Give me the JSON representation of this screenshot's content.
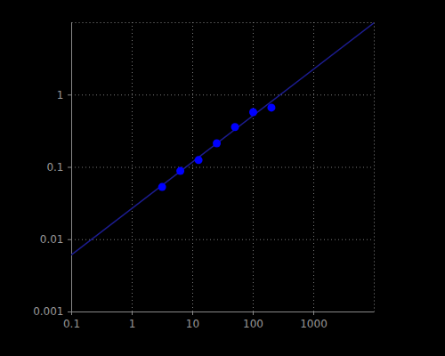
{
  "chart_data": {
    "type": "scatter",
    "log": true,
    "grid": true,
    "marker": "circle",
    "color": "#0000ff",
    "x": [
      3.125,
      6.25,
      12.5,
      25,
      50,
      100,
      200
    ],
    "values": [
      0.0535,
      0.089,
      0.126,
      0.215,
      0.36,
      0.58,
      0.67
    ],
    "fit": {
      "type": "line",
      "color": "#1c1c8f",
      "line_style": "solid",
      "x": [
        0.1,
        10000
      ],
      "values": [
        0.0062,
        10
      ]
    },
    "xlim": [
      0.1,
      10000
    ],
    "xticks": [
      0.1,
      1,
      10,
      100,
      1000
    ],
    "ylim": [
      0.001,
      10
    ],
    "yticks": [
      0.001,
      0.01,
      0.1,
      1
    ]
  }
}
